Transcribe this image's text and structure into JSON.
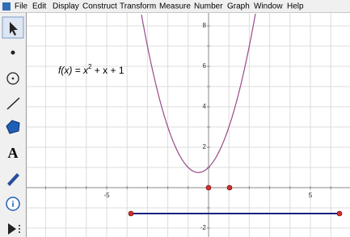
{
  "menu": [
    "File",
    "Edit",
    "Display",
    "Construct",
    "Transform",
    "Measure",
    "Number",
    "Graph",
    "Window",
    "Help"
  ],
  "function_label": {
    "name": "f(x) = x",
    "exponent": "2",
    "rest": " + x + 1"
  },
  "axes": {
    "xticks": [
      -5,
      5
    ],
    "yticks": [
      8,
      6,
      4,
      2,
      -2
    ]
  }
}
